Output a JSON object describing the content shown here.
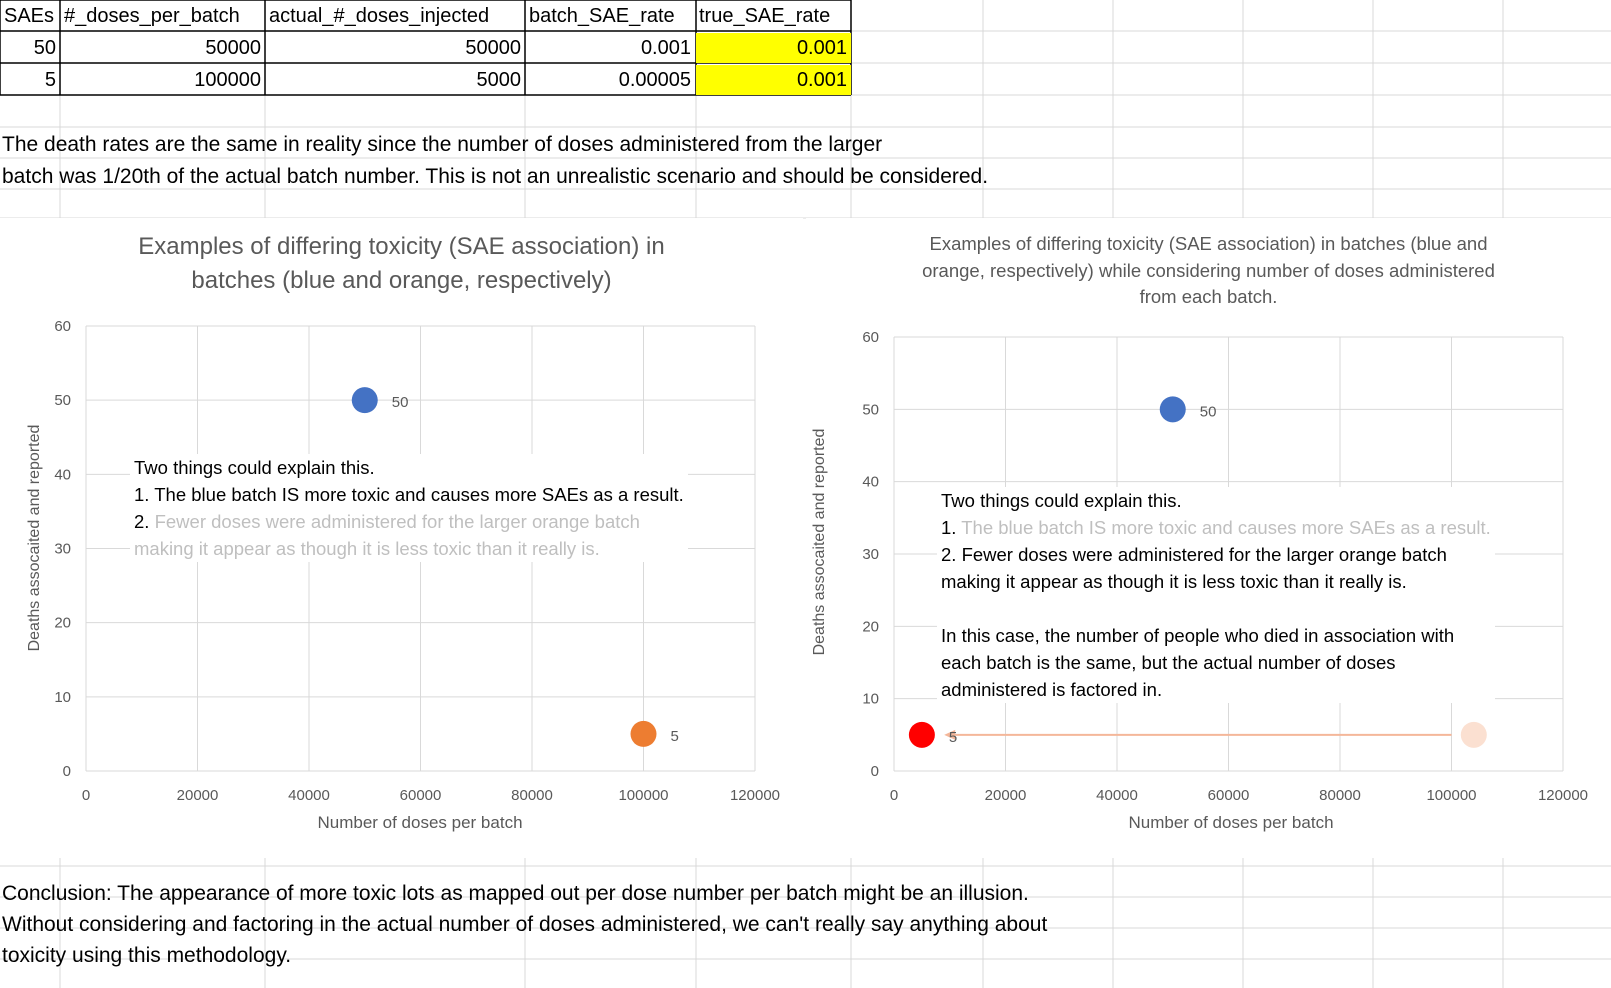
{
  "table": {
    "headers": [
      "SAEs",
      "#_doses_per_batch",
      "actual_#_doses_injected",
      "batch_SAE_rate",
      "true_SAE_rate"
    ],
    "rows": [
      [
        "50",
        "50000",
        "50000",
        "0.001",
        "0.001"
      ],
      [
        "5",
        "100000",
        "5000",
        "0.00005",
        "0.001"
      ]
    ]
  },
  "explanation": {
    "line1": "The death rates are the same in reality since the number of doses administered from the larger",
    "line2": "batch was 1/20th of the actual batch number. This is not an unrealistic scenario and should be considered."
  },
  "conclusion": {
    "line1": "Conclusion: The appearance of more toxic lots as mapped out per dose number per batch might be an illusion.",
    "line2": "Without considering and factoring in the actual number of doses administered, we can't really say anything about",
    "line3": "toxicity using this methodology."
  },
  "annotation_left": {
    "line1": "Two things could explain this.",
    "line2": "1. The blue batch IS more toxic and causes more SAEs as a result.",
    "line3_num": "2.",
    "line3_rest": " Fewer doses were administered for the larger orange batch",
    "line4": "making it appear as though it is less toxic than it really is."
  },
  "annotation_right": {
    "line1": "Two things could explain this.",
    "line2_num": "1.",
    "line2_rest": " The blue batch IS more toxic and causes more SAEs as a result.",
    "line3": "2. Fewer doses were administered for the larger orange batch",
    "line4": "making it appear as though it is less toxic than it really is.",
    "line5": "In this case, the number of people who died in association with",
    "line6": "each batch is the same, but the actual number of doses",
    "line7": "administered is factored in."
  },
  "colors": {
    "blue": "#4472c4",
    "orange": "#ed7d31",
    "red": "#ff0000",
    "faded_orange": "#fbe0d1",
    "highlight": "#ffff00",
    "axis_text": "#595959",
    "gridline": "#d9d9d9"
  },
  "chart_data": [
    {
      "type": "scatter",
      "title_line1": "Examples of differing toxicity (SAE association) in",
      "title_line2": "batches (blue and orange, respectively)",
      "xlabel": "Number of doses per batch",
      "ylabel": "Deaths assocaited and reported",
      "xlim": [
        0,
        120000
      ],
      "ylim": [
        0,
        60
      ],
      "xticks": [
        0,
        20000,
        40000,
        60000,
        80000,
        100000,
        120000
      ],
      "yticks": [
        0,
        10,
        20,
        30,
        40,
        50,
        60
      ],
      "grid": true,
      "points": [
        {
          "x": 50000,
          "y": 50,
          "label": "50",
          "color": "#4472c4"
        },
        {
          "x": 100000,
          "y": 5,
          "label": "5",
          "color": "#ed7d31"
        }
      ]
    },
    {
      "type": "scatter",
      "title_line1": "Examples of differing toxicity (SAE association) in batches (blue and",
      "title_line2": "orange, respectively) while considering number of doses administered",
      "title_line3": "from each batch.",
      "xlabel": "Number of doses per batch",
      "ylabel": "Deaths assocaited and reported",
      "xlim": [
        0,
        120000
      ],
      "ylim": [
        0,
        60
      ],
      "xticks": [
        0,
        20000,
        40000,
        60000,
        80000,
        100000,
        120000
      ],
      "yticks": [
        0,
        10,
        20,
        30,
        40,
        50,
        60
      ],
      "grid": true,
      "points": [
        {
          "x": 50000,
          "y": 50,
          "label": "50",
          "color": "#4472c4"
        },
        {
          "x": 5000,
          "y": 5,
          "label": "5",
          "color": "#ff0000"
        },
        {
          "x": 104000,
          "y": 5,
          "label": "",
          "color": "#fbe0d1"
        }
      ],
      "arrow": {
        "from": [
          100000,
          5
        ],
        "to": [
          9000,
          5
        ],
        "color": "#f4b79a"
      }
    }
  ]
}
